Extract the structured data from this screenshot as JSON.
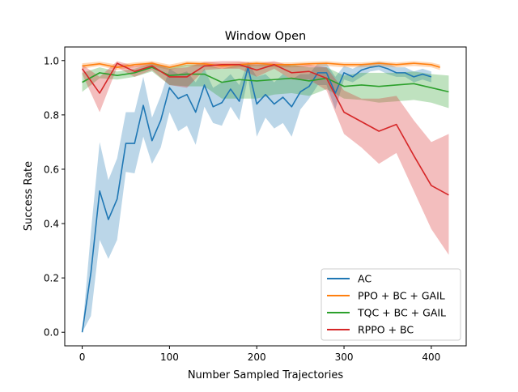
{
  "chart_data": {
    "type": "line",
    "title": "Window Open",
    "xlabel": "Number Sampled Trajectories",
    "ylabel": "Success Rate",
    "xlim": [
      -20,
      440
    ],
    "ylim": [
      -0.05,
      1.05
    ],
    "xticks": [
      0,
      100,
      200,
      300,
      400
    ],
    "yticks": [
      0.0,
      0.2,
      0.4,
      0.6,
      0.8,
      1.0
    ],
    "xtick_labels": [
      "0",
      "100",
      "200",
      "300",
      "400"
    ],
    "ytick_labels": [
      "0.0",
      "0.2",
      "0.4",
      "0.6",
      "0.8",
      "1.0"
    ],
    "grid": false,
    "legend_position": "lower-right",
    "series": [
      {
        "name": "AC",
        "color": "#1f77b4",
        "x": [
          0,
          10,
          20,
          30,
          40,
          50,
          60,
          70,
          80,
          90,
          100,
          110,
          120,
          130,
          140,
          150,
          160,
          170,
          180,
          190,
          200,
          210,
          220,
          230,
          240,
          250,
          260,
          270,
          280,
          290,
          300,
          310,
          320,
          330,
          340,
          350,
          360,
          370,
          380,
          390,
          400
        ],
        "y": [
          0.0,
          0.22,
          0.52,
          0.415,
          0.49,
          0.695,
          0.695,
          0.835,
          0.705,
          0.78,
          0.9,
          0.86,
          0.875,
          0.81,
          0.91,
          0.83,
          0.845,
          0.895,
          0.85,
          0.975,
          0.84,
          0.875,
          0.84,
          0.865,
          0.83,
          0.885,
          0.905,
          0.955,
          0.955,
          0.88,
          0.955,
          0.94,
          0.965,
          0.975,
          0.98,
          0.97,
          0.955,
          0.955,
          0.94,
          0.95,
          0.94
        ],
        "lower": [
          0.0,
          0.06,
          0.34,
          0.27,
          0.34,
          0.59,
          0.585,
          0.72,
          0.62,
          0.68,
          0.81,
          0.74,
          0.76,
          0.69,
          0.83,
          0.77,
          0.76,
          0.83,
          0.78,
          0.94,
          0.72,
          0.79,
          0.75,
          0.77,
          0.72,
          0.82,
          0.86,
          0.91,
          0.91,
          0.82,
          0.93,
          0.92,
          0.94,
          0.96,
          0.965,
          0.95,
          0.94,
          0.94,
          0.92,
          0.93,
          0.92
        ],
        "upper": [
          0.0,
          0.37,
          0.7,
          0.56,
          0.64,
          0.81,
          0.81,
          0.94,
          0.79,
          0.87,
          0.97,
          0.95,
          0.96,
          0.92,
          0.97,
          0.9,
          0.92,
          0.95,
          0.91,
          0.995,
          0.94,
          0.95,
          0.92,
          0.95,
          0.93,
          0.95,
          0.95,
          0.99,
          0.99,
          0.94,
          0.98,
          0.97,
          0.985,
          0.99,
          0.995,
          0.99,
          0.975,
          0.975,
          0.96,
          0.97,
          0.96
        ]
      },
      {
        "name": "PPO + BC + GAIL",
        "color": "#ff7f0e",
        "x": [
          0,
          20,
          40,
          60,
          80,
          100,
          120,
          140,
          160,
          180,
          200,
          220,
          240,
          260,
          280,
          300,
          320,
          340,
          360,
          380,
          400,
          410
        ],
        "y": [
          0.98,
          0.988,
          0.975,
          0.985,
          0.99,
          0.975,
          0.99,
          0.988,
          0.98,
          0.985,
          0.99,
          0.985,
          0.985,
          0.988,
          0.99,
          0.985,
          0.985,
          0.99,
          0.985,
          0.99,
          0.985,
          0.975
        ],
        "lower": [
          0.97,
          0.98,
          0.965,
          0.975,
          0.98,
          0.965,
          0.98,
          0.978,
          0.97,
          0.975,
          0.98,
          0.975,
          0.975,
          0.978,
          0.98,
          0.975,
          0.975,
          0.98,
          0.975,
          0.98,
          0.975,
          0.965
        ],
        "upper": [
          0.99,
          0.996,
          0.985,
          0.993,
          0.998,
          0.985,
          0.998,
          0.996,
          0.99,
          0.993,
          0.998,
          0.993,
          0.993,
          0.996,
          0.998,
          0.993,
          0.993,
          0.998,
          0.993,
          0.998,
          0.993,
          0.985
        ]
      },
      {
        "name": "TQC + BC + GAIL",
        "color": "#2ca02c",
        "x": [
          0,
          20,
          40,
          60,
          80,
          100,
          120,
          140,
          160,
          180,
          200,
          220,
          240,
          260,
          280,
          300,
          320,
          340,
          360,
          380,
          400,
          420
        ],
        "y": [
          0.92,
          0.955,
          0.945,
          0.955,
          0.975,
          0.945,
          0.95,
          0.95,
          0.92,
          0.93,
          0.925,
          0.93,
          0.935,
          0.925,
          0.935,
          0.905,
          0.91,
          0.905,
          0.91,
          0.915,
          0.9,
          0.885
        ],
        "lower": [
          0.885,
          0.935,
          0.93,
          0.94,
          0.96,
          0.91,
          0.905,
          0.905,
          0.86,
          0.86,
          0.86,
          0.875,
          0.88,
          0.87,
          0.895,
          0.86,
          0.855,
          0.845,
          0.85,
          0.855,
          0.845,
          0.825
        ],
        "upper": [
          0.955,
          0.975,
          0.96,
          0.97,
          0.99,
          0.975,
          0.985,
          0.985,
          0.97,
          0.985,
          0.985,
          0.985,
          0.985,
          0.975,
          0.975,
          0.945,
          0.955,
          0.955,
          0.955,
          0.96,
          0.95,
          0.945
        ]
      },
      {
        "name": "RPPO + BC",
        "color": "#d62728",
        "x": [
          0,
          20,
          40,
          60,
          80,
          100,
          120,
          140,
          160,
          180,
          200,
          220,
          240,
          260,
          280,
          300,
          320,
          340,
          360,
          380,
          400,
          420
        ],
        "y": [
          0.97,
          0.88,
          0.99,
          0.96,
          0.98,
          0.94,
          0.94,
          0.98,
          0.985,
          0.985,
          0.965,
          0.985,
          0.955,
          0.96,
          0.935,
          0.81,
          0.775,
          0.74,
          0.765,
          0.65,
          0.54,
          0.505
        ],
        "lower": [
          0.95,
          0.81,
          0.975,
          0.94,
          0.965,
          0.91,
          0.9,
          0.965,
          0.97,
          0.97,
          0.94,
          0.97,
          0.93,
          0.93,
          0.89,
          0.73,
          0.68,
          0.62,
          0.66,
          0.52,
          0.38,
          0.285
        ],
        "upper": [
          0.985,
          0.94,
          0.998,
          0.98,
          0.995,
          0.97,
          0.975,
          0.995,
          0.998,
          0.998,
          0.99,
          0.998,
          0.98,
          0.985,
          0.975,
          0.89,
          0.86,
          0.86,
          0.87,
          0.78,
          0.7,
          0.73
        ]
      }
    ]
  }
}
